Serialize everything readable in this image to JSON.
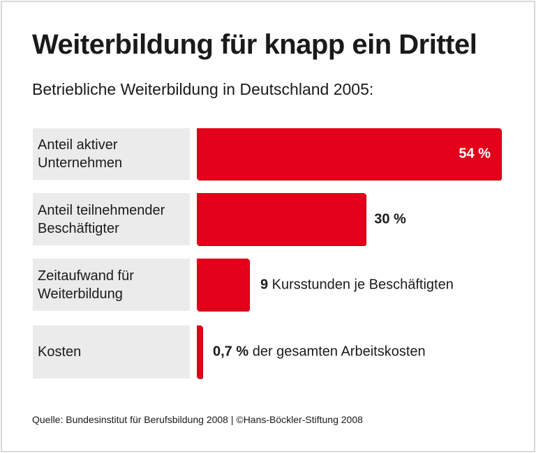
{
  "chart_data": {
    "type": "bar",
    "orientation": "horizontal",
    "title": "Weiterbildung für knapp ein Drittel",
    "subtitle": "Betriebliche Weiterbildung in Deutschland 2005:",
    "bar_color": "#e2001a",
    "label_bg_color": "#ebebeb",
    "categories": [
      "Anteil aktiver\nUnternehmen",
      "Anteil teilnehmender\nBeschäftigter",
      "Zeitaufwand für\nWeiterbildung",
      "Kosten"
    ],
    "rows": [
      {
        "value": 54,
        "unit": "%",
        "value_text": "54 %",
        "suffix": "",
        "label_inside": true
      },
      {
        "value": 30,
        "unit": "%",
        "value_text": "30 %",
        "suffix": "",
        "label_inside": false
      },
      {
        "value": 9,
        "unit": "Kursstunden",
        "value_text": "9",
        "suffix": " Kursstunden je Beschäftigten",
        "label_inside": false
      },
      {
        "value": 0.7,
        "unit": "%",
        "value_text": "0,7 %",
        "suffix": " der gesamten Arbeitskosten",
        "label_inside": false
      }
    ],
    "source": "Quelle: Bundesinstitut für Berufsbildung 2008 | ©Hans-Böckler-Stiftung 2008"
  }
}
